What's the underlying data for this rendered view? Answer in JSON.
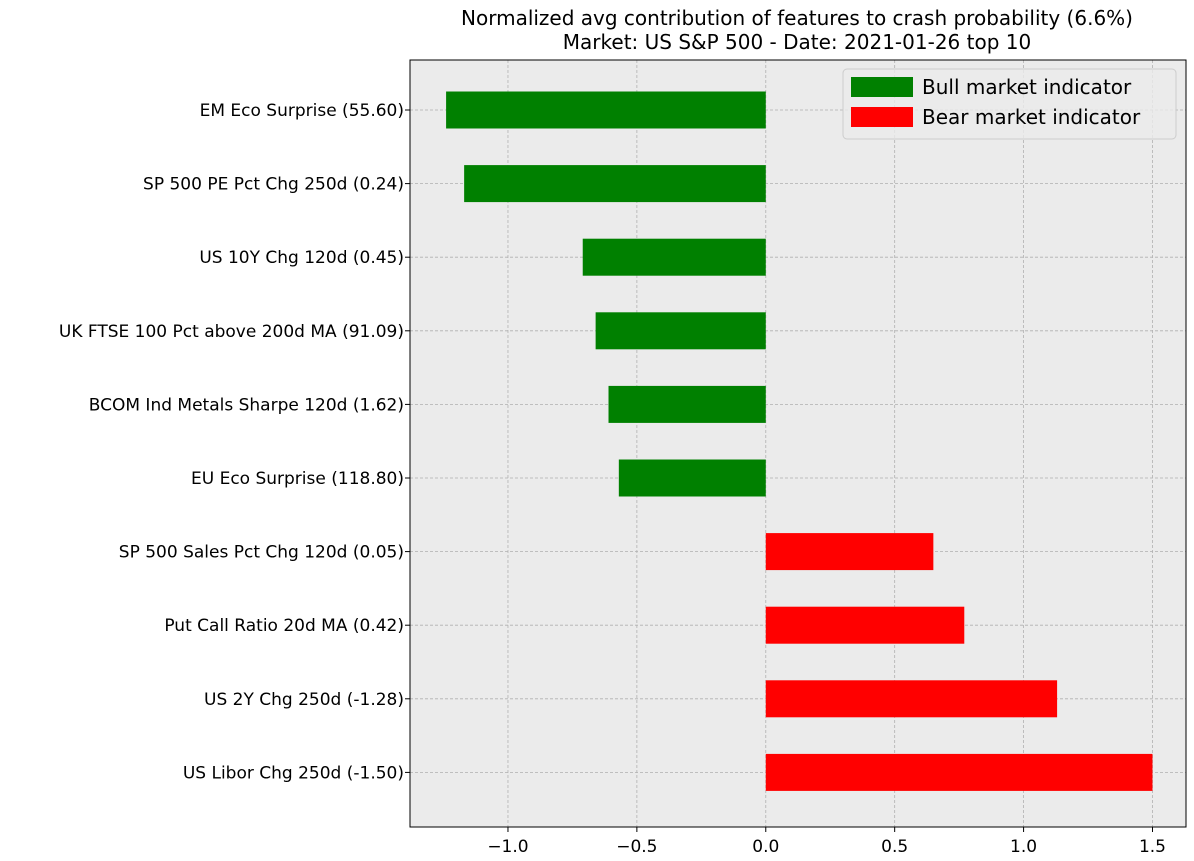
{
  "chart_data": {
    "type": "bar",
    "orientation": "horizontal",
    "title": [
      "Normalized avg contribution of features to crash probability (6.6%)",
      "Market: US S&P 500 - Date: 2021-01-26  top 10"
    ],
    "categories": [
      "EM Eco Surprise (55.60)",
      "SP 500 PE Pct Chg 250d (0.24)",
      "US 10Y Chg 120d (0.45)",
      "UK FTSE 100 Pct above 200d MA (91.09)",
      "BCOM Ind Metals Sharpe 120d (1.62)",
      "EU Eco Surprise (118.80)",
      "SP 500 Sales Pct Chg 120d (0.05)",
      "Put Call Ratio 20d MA (0.42)",
      "US 2Y Chg 250d (-1.28)",
      "US Libor Chg 250d (-1.50)"
    ],
    "values": [
      -1.24,
      -1.17,
      -0.71,
      -0.66,
      -0.61,
      -0.57,
      0.65,
      0.77,
      1.13,
      1.5
    ],
    "xlim": [
      -1.38,
      1.63
    ],
    "xticks": [
      -1.0,
      -0.5,
      0.0,
      0.5,
      1.0,
      1.5
    ],
    "xtick_labels": [
      "−1.0",
      "−0.5",
      "0.0",
      "0.5",
      "1.0",
      "1.5"
    ],
    "grid": true,
    "legend_position": "top-right",
    "legend": [
      {
        "label": "Bull market indicator",
        "color": "#008000"
      },
      {
        "label": "Bear market indicator",
        "color": "#ff0000"
      }
    ],
    "colors": {
      "negative": "#008000",
      "positive": "#ff0000",
      "background": "#ebebeb",
      "grid": "#b0b0b0"
    }
  }
}
